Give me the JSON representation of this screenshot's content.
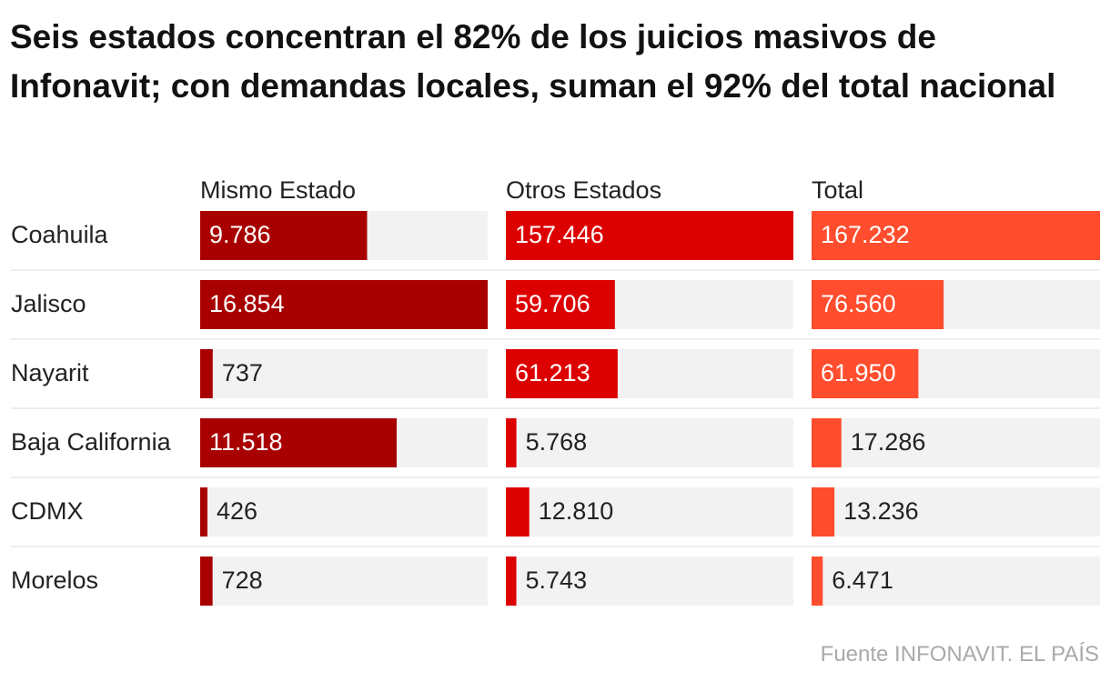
{
  "title": "Seis estados concentran el 82% de los juicios masivos de Infonavit; con demandas locales, suman el 92% del total nacional",
  "source": "Fuente INFONAVIT. EL PAÍS",
  "colors": {
    "mismo": "#a80000",
    "otros": "#dd0000",
    "total": "#ff4d2e",
    "track": "#f2f2f2",
    "divider": "#dddddd",
    "label_in": "#ffffff",
    "label_out": "#222222"
  },
  "chart_data": {
    "type": "bar",
    "title": "Seis estados concentran el 82% de los juicios masivos de Infonavit; con demandas locales, suman el 92% del total nacional",
    "categories": [
      "Coahuila",
      "Jalisco",
      "Nayarit",
      "Baja California",
      "CDMX",
      "Morelos"
    ],
    "series": [
      {
        "key": "mismo",
        "name": "Mismo Estado",
        "values": [
          9786,
          16854,
          737,
          11518,
          426,
          728
        ],
        "labels": [
          "9.786",
          "16.854",
          "737",
          "11.518",
          "426",
          "728"
        ],
        "max": 16854
      },
      {
        "key": "otros",
        "name": "Otros Estados",
        "values": [
          157446,
          59706,
          61213,
          5768,
          12810,
          5743
        ],
        "labels": [
          "157.446",
          "59.706",
          "61.213",
          "5.768",
          "12.810",
          "5.743"
        ],
        "max": 157446
      },
      {
        "key": "total",
        "name": "Total",
        "values": [
          167232,
          76560,
          61950,
          17286,
          13236,
          6471
        ],
        "labels": [
          "167.232",
          "76.560",
          "61.950",
          "17.286",
          "13.236",
          "6.471"
        ],
        "max": 167232
      }
    ]
  }
}
